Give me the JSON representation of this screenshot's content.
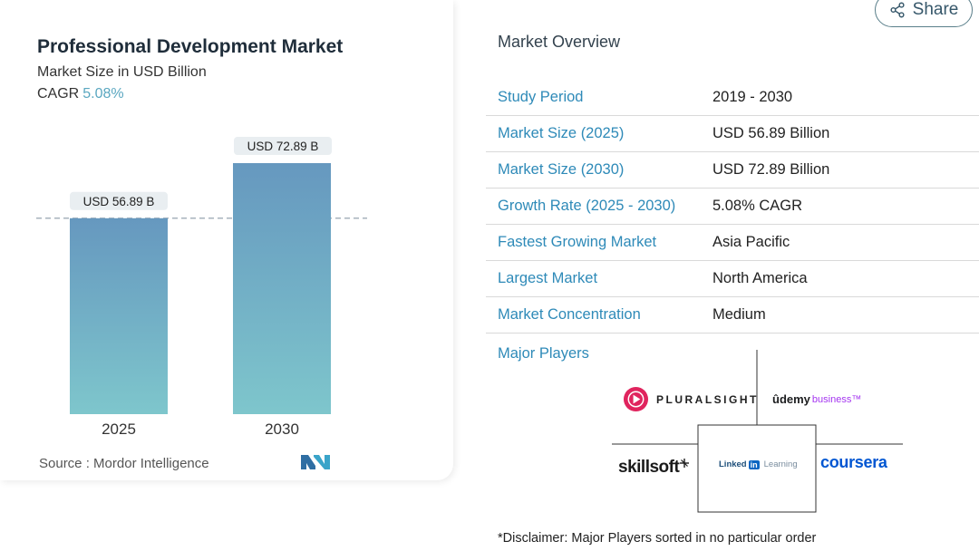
{
  "header": {
    "share_label": "Share",
    "share_icon": "share-icon"
  },
  "chart_data": {
    "type": "bar",
    "title": "Professional Development Market",
    "subtitle": "Market Size in USD Billion",
    "cagr_label": "CAGR",
    "cagr_value": "5.08%",
    "categories": [
      "2025",
      "2030"
    ],
    "values": [
      56.89,
      72.89
    ],
    "data_labels": [
      "USD 56.89 B",
      "USD 72.89 B"
    ],
    "ylim": [
      0,
      72.89
    ],
    "reference_line": 56.89,
    "bar_color_top": "#6698bf",
    "bar_color_bottom": "#7ec6cc",
    "xlabel": "",
    "ylabel": ""
  },
  "source": {
    "label": "Source :",
    "name": "Mordor Intelligence"
  },
  "overview": {
    "title": "Market Overview",
    "rows": [
      {
        "key": "Study Period",
        "value": "2019 - 2030"
      },
      {
        "key": "Market Size (2025)",
        "value": "USD 56.89 Billion"
      },
      {
        "key": "Market Size (2030)",
        "value": "USD 72.89 Billion"
      },
      {
        "key": "Growth Rate (2025 - 2030)",
        "value": "5.08% CAGR"
      },
      {
        "key": "Fastest Growing Market",
        "value": "Asia Pacific"
      },
      {
        "key": "Largest Market",
        "value": "North America"
      },
      {
        "key": "Market Concentration",
        "value": "Medium"
      }
    ]
  },
  "players": {
    "title": "Major Players",
    "pluralsight": "PLURALSIGHT",
    "udemy_a": "ûdemy",
    "udemy_b": "business™",
    "skillsoft": "skillsoft",
    "linkedin_a": "Linked",
    "linkedin_in": "in",
    "linkedin_b": "Learning",
    "coursera": "coursera"
  },
  "disclaimer": "*Disclaimer: Major Players sorted in no particular order",
  "colors": {
    "accent": "#2e8ab8",
    "cagr": "#5aa7c0",
    "pluralsight": "#e0245e",
    "linkedin": "#0a66c2",
    "coursera": "#0056d2"
  }
}
